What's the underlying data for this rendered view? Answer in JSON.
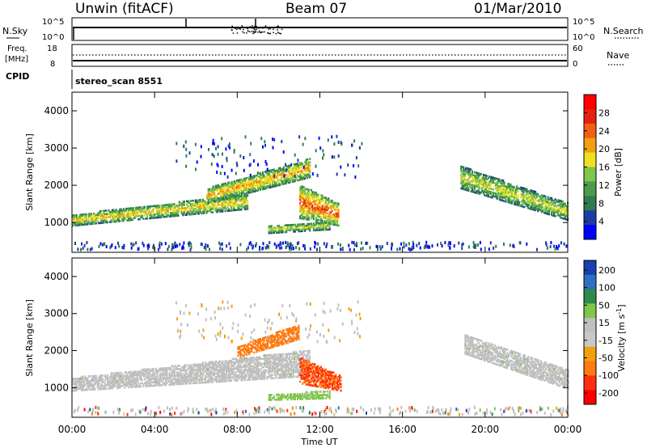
{
  "header": {
    "station": "Unwin (fitACF)",
    "beam": "Beam 07",
    "date": "01/Mar/2010"
  },
  "side_labels": {
    "nsky": "N.Sky",
    "nsearch": "N.Search",
    "freq_top": "Freq.",
    "freq_unit": "[MHz]",
    "nave": "Nave",
    "cpid": "CPID",
    "nsky_tick_hi": "10^5",
    "nsky_tick_lo": "10^0",
    "freq_tick_hi": "18",
    "freq_tick_lo": "8",
    "nave_tick_hi": "60",
    "nave_tick_lo": "0"
  },
  "cpid_value": "stereo_scan 8551",
  "colors": {
    "power_scale": [
      "#0000ff",
      "#1f3aa6",
      "#2e7d4f",
      "#4f9a4a",
      "#7fc64a",
      "#f0e020",
      "#f0a010",
      "#f06010",
      "#e82010",
      "#ff0000"
    ],
    "velocity_scale": [
      "#1a3fb0",
      "#2f6fbf",
      "#2e8a4a",
      "#7fc64a",
      "#c0c0c0",
      "#c8c8c8",
      "#f0a010",
      "#ff7a10",
      "#ff3010",
      "#ff0000"
    ],
    "ground_scatter": "#c0c0c0"
  },
  "chart_data": [
    {
      "type": "heatmap",
      "name": "power",
      "title": "",
      "xlabel": "",
      "ylabel": "Slant Range [km]",
      "xlim": [
        0,
        24
      ],
      "ylim": [
        200,
        4500
      ],
      "x_ticks": [
        "00:00",
        "04:00",
        "08:00",
        "12:00",
        "16:00",
        "20:00",
        "00:00"
      ],
      "y_ticks": [
        1000,
        2000,
        3000,
        4000
      ],
      "colorbar_label": "Power [dB]",
      "colorbar_ticks": [
        4,
        8,
        12,
        16,
        20,
        24,
        28
      ],
      "echo_bands": [
        {
          "t0": 0.0,
          "t1": 8.5,
          "r0a": 900,
          "r1a": 1200,
          "r0b": 1350,
          "r1b": 1750,
          "peak": 18
        },
        {
          "t0": 6.5,
          "t1": 11.5,
          "r0a": 1500,
          "r1a": 1900,
          "r0b": 2200,
          "r1b": 2700,
          "peak": 20
        },
        {
          "t0": 11.0,
          "t1": 12.9,
          "r0a": 1100,
          "r1a": 2000,
          "r0b": 900,
          "r1b": 1500,
          "peak": 24
        },
        {
          "t0": 9.5,
          "t1": 12.5,
          "r0a": 700,
          "r1a": 900,
          "r0b": 800,
          "r1b": 1000,
          "peak": 16
        },
        {
          "t0": 18.8,
          "t1": 24.0,
          "r0a": 1900,
          "r1a": 2500,
          "r0b": 1050,
          "r1b": 1500,
          "peak": 16
        }
      ]
    },
    {
      "type": "heatmap",
      "name": "velocity",
      "title": "",
      "xlabel": "Time UT",
      "ylabel": "Slant Range [km]",
      "xlim": [
        0,
        24
      ],
      "ylim": [
        200,
        4500
      ],
      "x_ticks": [
        "00:00",
        "04:00",
        "08:00",
        "12:00",
        "16:00",
        "20:00",
        "00:00"
      ],
      "y_ticks": [
        1000,
        2000,
        3000,
        4000
      ],
      "colorbar_label": "Velocity [m s^-1]",
      "colorbar_ticks": [
        200,
        100,
        50,
        15,
        -15,
        -50,
        -100,
        -200
      ],
      "echo_bands": [
        {
          "t0": 0.0,
          "t1": 11.5,
          "r0a": 900,
          "r1a": 1250,
          "r0b": 1300,
          "r1b": 2000,
          "vel": 0
        },
        {
          "t0": 8.0,
          "t1": 11.0,
          "r0a": 1800,
          "r1a": 2100,
          "r0b": 2300,
          "r1b": 2700,
          "vel": -120
        },
        {
          "t0": 11.0,
          "t1": 13.0,
          "r0a": 1100,
          "r1a": 1800,
          "r0b": 900,
          "r1b": 1300,
          "vel": -200
        },
        {
          "t0": 9.5,
          "t1": 12.5,
          "r0a": 650,
          "r1a": 800,
          "r0b": 700,
          "r1b": 900,
          "vel": 30
        },
        {
          "t0": 19.0,
          "t1": 24.0,
          "r0a": 1900,
          "r1a": 2400,
          "r0b": 950,
          "r1b": 1450,
          "vel": 5
        }
      ]
    }
  ]
}
